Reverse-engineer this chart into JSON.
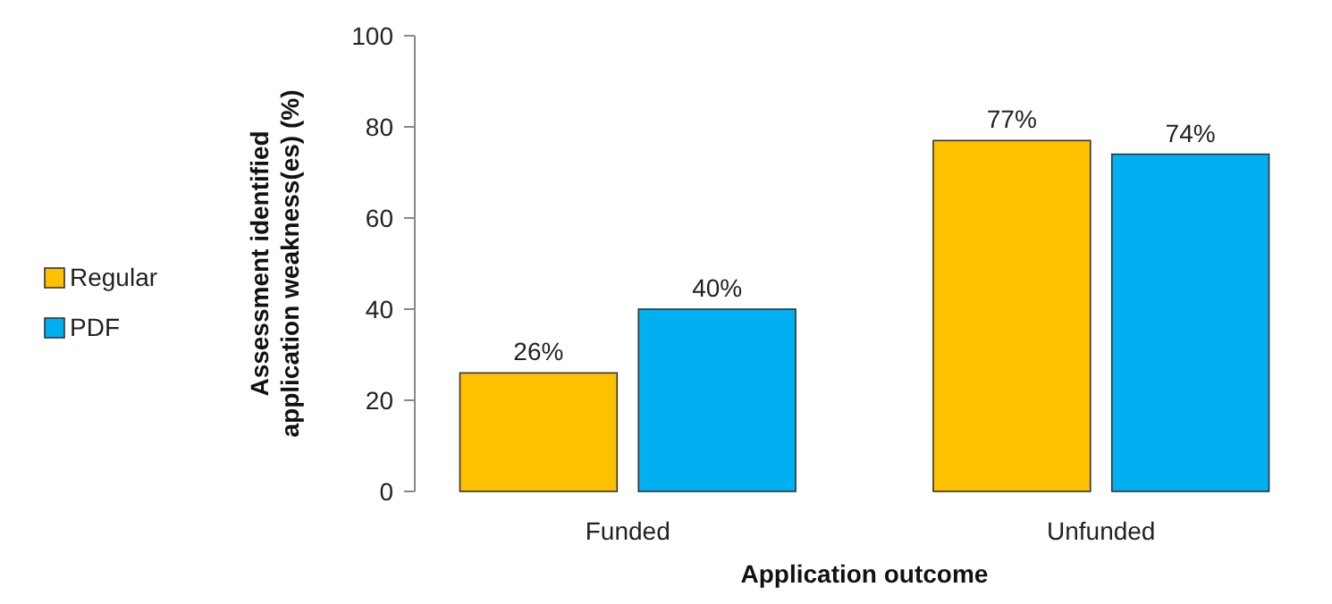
{
  "chart_data": {
    "type": "bar",
    "categories": [
      "Funded",
      "Unfunded"
    ],
    "series": [
      {
        "name": "Regular",
        "color": "#ffc000",
        "values": [
          26,
          77
        ],
        "value_labels": [
          "26%",
          "77%"
        ]
      },
      {
        "name": "PDF",
        "color": "#00b0f0",
        "values": [
          40,
          74
        ],
        "value_labels": [
          "40%",
          "74%"
        ]
      }
    ],
    "xlabel": "Application  outcome",
    "ylabel": "Assessment  identified\napplication  weakness(es)  (%)",
    "ylim": [
      0,
      100
    ],
    "yticks": [
      0,
      20,
      40,
      60,
      80,
      100
    ],
    "grid": false,
    "legend": "left"
  }
}
